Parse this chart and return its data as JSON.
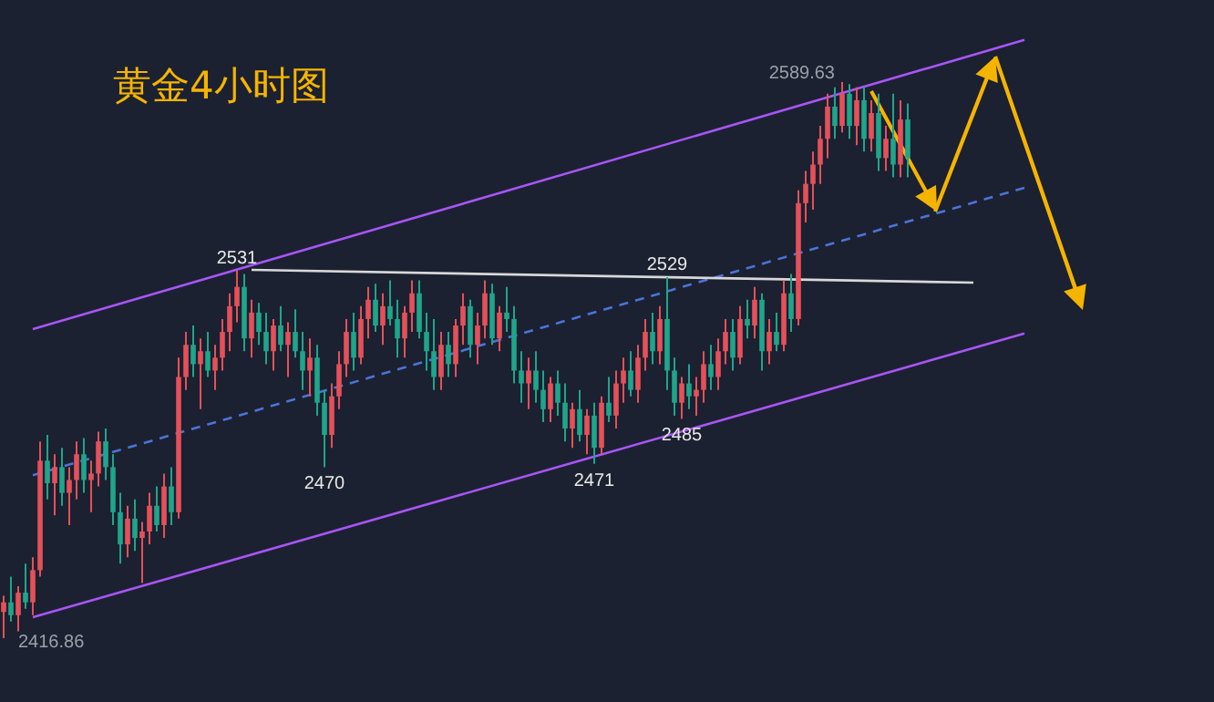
{
  "chart_data": {
    "type": "candlestick",
    "title": "黄金4小时图",
    "categories": [
      null,
      null,
      null,
      null,
      null,
      null,
      null,
      null,
      null,
      null,
      null,
      null,
      null,
      null,
      null,
      null,
      null,
      null,
      null,
      null,
      null,
      null,
      null,
      null,
      null,
      null,
      null,
      null,
      null,
      null,
      null,
      null,
      null,
      null,
      null,
      null,
      null,
      null,
      null,
      null,
      null,
      null,
      null,
      null,
      null,
      null,
      null,
      null,
      null,
      null,
      null,
      null,
      null,
      null,
      null,
      null,
      null,
      null,
      null,
      null,
      null,
      null,
      null,
      null,
      null,
      null,
      null,
      null,
      null,
      null,
      null,
      null,
      null,
      null,
      null,
      null,
      null,
      null,
      null,
      null,
      null,
      null,
      null,
      null,
      null,
      null,
      null,
      null,
      null,
      null,
      null,
      null,
      null,
      null,
      null,
      null,
      null,
      null,
      null,
      null,
      null,
      null,
      null,
      null,
      null,
      null,
      null,
      null,
      null,
      null,
      null,
      null,
      null,
      null,
      null,
      null,
      null,
      null,
      null,
      null,
      null,
      null,
      null,
      null,
      null,
      null,
      null,
      null,
      null,
      null,
      null,
      null,
      null,
      null,
      null,
      null,
      null,
      null,
      null,
      null,
      null
    ],
    "ohlc": [
      [
        2425,
        2430,
        2416.86,
        2428
      ],
      [
        2428,
        2436,
        2422,
        2424
      ],
      [
        2424,
        2433,
        2419,
        2431
      ],
      [
        2431,
        2440,
        2426,
        2428
      ],
      [
        2428,
        2442,
        2424,
        2438
      ],
      [
        2438,
        2478,
        2436,
        2472
      ],
      [
        2472,
        2480,
        2460,
        2465
      ],
      [
        2465,
        2474,
        2455,
        2470
      ],
      [
        2470,
        2476,
        2458,
        2462
      ],
      [
        2462,
        2470,
        2452,
        2466
      ],
      [
        2466,
        2478,
        2460,
        2474
      ],
      [
        2474,
        2479,
        2462,
        2466
      ],
      [
        2466,
        2472,
        2456,
        2468
      ],
      [
        2468,
        2481,
        2464,
        2478
      ],
      [
        2478,
        2482,
        2466,
        2470
      ],
      [
        2470,
        2474,
        2452,
        2456
      ],
      [
        2456,
        2462,
        2440,
        2446
      ],
      [
        2446,
        2458,
        2442,
        2454
      ],
      [
        2454,
        2460,
        2444,
        2448
      ],
      [
        2448,
        2453,
        2434,
        2450
      ],
      [
        2450,
        2462,
        2446,
        2458
      ],
      [
        2458,
        2464,
        2450,
        2452
      ],
      [
        2452,
        2468,
        2448,
        2464
      ],
      [
        2464,
        2470,
        2452,
        2456
      ],
      [
        2456,
        2504,
        2454,
        2498
      ],
      [
        2498,
        2512,
        2494,
        2508
      ],
      [
        2508,
        2514,
        2498,
        2502
      ],
      [
        2502,
        2510,
        2488,
        2506
      ],
      [
        2506,
        2512,
        2498,
        2500
      ],
      [
        2500,
        2508,
        2494,
        2504
      ],
      [
        2504,
        2516,
        2500,
        2512
      ],
      [
        2512,
        2524,
        2506,
        2520
      ],
      [
        2520,
        2531,
        2515,
        2526
      ],
      [
        2526,
        2530,
        2506,
        2510
      ],
      [
        2510,
        2522,
        2504,
        2518
      ],
      [
        2518,
        2521,
        2508,
        2512
      ],
      [
        2512,
        2518,
        2502,
        2506
      ],
      [
        2506,
        2516,
        2500,
        2514
      ],
      [
        2514,
        2520,
        2506,
        2508
      ],
      [
        2508,
        2515,
        2498,
        2512
      ],
      [
        2512,
        2519,
        2504,
        2506
      ],
      [
        2506,
        2512,
        2494,
        2500
      ],
      [
        2500,
        2510,
        2492,
        2504
      ],
      [
        2504,
        2508,
        2486,
        2490
      ],
      [
        2490,
        2494,
        2470,
        2480
      ],
      [
        2480,
        2496,
        2476,
        2492
      ],
      [
        2492,
        2506,
        2488,
        2502
      ],
      [
        2502,
        2516,
        2498,
        2512
      ],
      [
        2512,
        2518,
        2500,
        2504
      ],
      [
        2504,
        2520,
        2502,
        2516
      ],
      [
        2516,
        2526,
        2510,
        2522
      ],
      [
        2522,
        2527,
        2512,
        2514
      ],
      [
        2514,
        2524,
        2508,
        2520
      ],
      [
        2520,
        2528,
        2514,
        2516
      ],
      [
        2516,
        2522,
        2504,
        2510
      ],
      [
        2510,
        2520,
        2504,
        2518
      ],
      [
        2518,
        2528,
        2512,
        2524
      ],
      [
        2524,
        2528,
        2510,
        2512
      ],
      [
        2512,
        2518,
        2500,
        2506
      ],
      [
        2506,
        2516,
        2494,
        2498
      ],
      [
        2498,
        2512,
        2494,
        2508
      ],
      [
        2508,
        2512,
        2498,
        2502
      ],
      [
        2502,
        2516,
        2498,
        2514
      ],
      [
        2514,
        2524,
        2508,
        2520
      ],
      [
        2520,
        2522,
        2504,
        2508
      ],
      [
        2508,
        2518,
        2502,
        2514
      ],
      [
        2514,
        2528,
        2510,
        2524
      ],
      [
        2524,
        2527,
        2508,
        2510
      ],
      [
        2510,
        2520,
        2506,
        2518
      ],
      [
        2518,
        2526,
        2512,
        2516
      ],
      [
        2516,
        2520,
        2496,
        2500
      ],
      [
        2500,
        2506,
        2490,
        2496
      ],
      [
        2496,
        2504,
        2488,
        2500
      ],
      [
        2500,
        2506,
        2490,
        2494
      ],
      [
        2494,
        2500,
        2484,
        2488
      ],
      [
        2488,
        2498,
        2484,
        2496
      ],
      [
        2496,
        2500,
        2486,
        2490
      ],
      [
        2490,
        2496,
        2478,
        2482
      ],
      [
        2482,
        2490,
        2476,
        2488
      ],
      [
        2488,
        2494,
        2478,
        2480
      ],
      [
        2480,
        2488,
        2474,
        2486
      ],
      [
        2486,
        2490,
        2471,
        2476
      ],
      [
        2476,
        2492,
        2474,
        2490
      ],
      [
        2490,
        2498,
        2484,
        2486
      ],
      [
        2486,
        2500,
        2482,
        2496
      ],
      [
        2496,
        2504,
        2490,
        2500
      ],
      [
        2500,
        2506,
        2492,
        2494
      ],
      [
        2494,
        2508,
        2490,
        2504
      ],
      [
        2504,
        2516,
        2500,
        2512
      ],
      [
        2512,
        2518,
        2502,
        2506
      ],
      [
        2506,
        2520,
        2502,
        2516
      ],
      [
        2516,
        2529,
        2494,
        2500
      ],
      [
        2500,
        2504,
        2486,
        2490
      ],
      [
        2490,
        2498,
        2485,
        2496
      ],
      [
        2496,
        2502,
        2488,
        2492
      ],
      [
        2492,
        2498,
        2486,
        2494
      ],
      [
        2494,
        2506,
        2490,
        2502
      ],
      [
        2502,
        2508,
        2494,
        2498
      ],
      [
        2498,
        2510,
        2494,
        2506
      ],
      [
        2506,
        2516,
        2502,
        2512
      ],
      [
        2512,
        2516,
        2500,
        2504
      ],
      [
        2504,
        2520,
        2502,
        2516
      ],
      [
        2516,
        2522,
        2510,
        2514
      ],
      [
        2514,
        2526,
        2510,
        2522
      ],
      [
        2522,
        2524,
        2500,
        2506
      ],
      [
        2506,
        2516,
        2502,
        2512
      ],
      [
        2512,
        2518,
        2506,
        2508
      ],
      [
        2508,
        2528,
        2506,
        2524
      ],
      [
        2524,
        2530,
        2512,
        2516
      ],
      [
        2516,
        2556,
        2514,
        2552
      ],
      [
        2552,
        2562,
        2546,
        2558
      ],
      [
        2558,
        2568,
        2550,
        2564
      ],
      [
        2564,
        2576,
        2558,
        2572
      ],
      [
        2572,
        2586,
        2566,
        2582
      ],
      [
        2582,
        2588,
        2572,
        2576
      ],
      [
        2576,
        2589.63,
        2574,
        2586
      ],
      [
        2586,
        2589,
        2572,
        2576
      ],
      [
        2576,
        2588,
        2570,
        2584
      ],
      [
        2584,
        2588,
        2568,
        2572
      ],
      [
        2572,
        2584,
        2568,
        2580
      ],
      [
        2580,
        2586,
        2562,
        2566
      ],
      [
        2566,
        2576,
        2562,
        2572
      ],
      [
        2572,
        2586,
        2560,
        2564
      ],
      [
        2564,
        2584,
        2560,
        2578
      ],
      [
        2578,
        2583,
        2560,
        2566
      ],
      null,
      null,
      null,
      null,
      null,
      null,
      null,
      null,
      null,
      null,
      null,
      null,
      null,
      null,
      null,
      null
    ],
    "series": [
      {
        "type": "line",
        "color": "#a855f7",
        "line_style": "solid",
        "values": [
          null,
          null,
          null,
          null,
          2512.9,
          null,
          null,
          null,
          null,
          null,
          null,
          null,
          null,
          null,
          null,
          null,
          null,
          null,
          null,
          null,
          null,
          null,
          null,
          null,
          null,
          null,
          null,
          null,
          null,
          null,
          null,
          null,
          null,
          null,
          null,
          null,
          null,
          null,
          null,
          null,
          null,
          null,
          null,
          null,
          null,
          null,
          null,
          null,
          null,
          null,
          null,
          null,
          null,
          null,
          null,
          null,
          null,
          null,
          null,
          null,
          null,
          null,
          null,
          null,
          null,
          null,
          null,
          null,
          null,
          null,
          null,
          null,
          null,
          null,
          null,
          null,
          null,
          null,
          null,
          null,
          null,
          null,
          null,
          null,
          null,
          null,
          null,
          null,
          null,
          null,
          null,
          null,
          null,
          null,
          null,
          null,
          null,
          null,
          null,
          null,
          null,
          null,
          null,
          null,
          null,
          null,
          null,
          null,
          null,
          null,
          null,
          null,
          null,
          null,
          null,
          null,
          null,
          null,
          null,
          null,
          null,
          null,
          null,
          null,
          null,
          null,
          null,
          null,
          null,
          null,
          null,
          null,
          null,
          null,
          null,
          null,
          null,
          null,
          null,
          null,
          2602.7
        ]
      },
      {
        "type": "line",
        "color": "#a855f7",
        "line_style": "solid",
        "values": [
          null,
          null,
          null,
          null,
          2423.4,
          null,
          null,
          null,
          null,
          null,
          null,
          null,
          null,
          null,
          null,
          null,
          null,
          null,
          null,
          null,
          null,
          null,
          null,
          null,
          null,
          null,
          null,
          null,
          null,
          null,
          null,
          null,
          null,
          null,
          null,
          null,
          null,
          null,
          null,
          null,
          null,
          null,
          null,
          null,
          null,
          null,
          null,
          null,
          null,
          null,
          null,
          null,
          null,
          null,
          null,
          null,
          null,
          null,
          null,
          null,
          null,
          null,
          null,
          null,
          null,
          null,
          null,
          null,
          null,
          null,
          null,
          null,
          null,
          null,
          null,
          null,
          null,
          null,
          null,
          null,
          null,
          null,
          null,
          null,
          null,
          null,
          null,
          null,
          null,
          null,
          null,
          null,
          null,
          null,
          null,
          null,
          null,
          null,
          null,
          null,
          null,
          null,
          null,
          null,
          null,
          null,
          null,
          null,
          null,
          null,
          null,
          null,
          null,
          null,
          null,
          null,
          null,
          null,
          null,
          null,
          null,
          null,
          null,
          null,
          null,
          null,
          null,
          null,
          null,
          null,
          null,
          null,
          null,
          null,
          null,
          null,
          null,
          null,
          null,
          null,
          2511.5
        ]
      },
      {
        "type": "line",
        "color": "#4a74d9",
        "line_style": "dashed",
        "values": [
          null,
          null,
          null,
          null,
          2467.5,
          null,
          null,
          null,
          null,
          null,
          null,
          null,
          null,
          null,
          null,
          null,
          null,
          null,
          null,
          null,
          null,
          null,
          null,
          null,
          null,
          null,
          null,
          null,
          null,
          null,
          null,
          null,
          null,
          null,
          null,
          null,
          null,
          null,
          null,
          null,
          null,
          null,
          null,
          null,
          null,
          null,
          null,
          null,
          null,
          null,
          null,
          null,
          null,
          null,
          null,
          null,
          null,
          null,
          null,
          null,
          null,
          null,
          null,
          null,
          null,
          null,
          null,
          null,
          null,
          null,
          null,
          null,
          null,
          null,
          null,
          null,
          null,
          null,
          null,
          null,
          null,
          null,
          null,
          null,
          null,
          null,
          null,
          null,
          null,
          null,
          null,
          null,
          null,
          null,
          null,
          null,
          null,
          null,
          null,
          null,
          null,
          null,
          null,
          null,
          null,
          null,
          null,
          null,
          null,
          null,
          null,
          null,
          null,
          null,
          null,
          null,
          null,
          null,
          null,
          null,
          null,
          null,
          null,
          null,
          null,
          null,
          null,
          null,
          null,
          null,
          null,
          null,
          null,
          null,
          null,
          null,
          null,
          null,
          null,
          null,
          2556.8
        ]
      },
      {
        "type": "line",
        "color": "#d8d8d8",
        "line_style": "solid",
        "values": [
          null,
          null,
          null,
          null,
          null,
          null,
          null,
          null,
          null,
          null,
          null,
          null,
          null,
          null,
          null,
          null,
          null,
          null,
          null,
          null,
          null,
          null,
          null,
          null,
          null,
          null,
          null,
          null,
          null,
          null,
          null,
          null,
          null,
          null,
          2531.3,
          null,
          null,
          null,
          null,
          null,
          null,
          null,
          null,
          null,
          null,
          null,
          null,
          null,
          null,
          null,
          null,
          null,
          null,
          null,
          null,
          null,
          null,
          null,
          null,
          null,
          null,
          null,
          null,
          null,
          null,
          null,
          null,
          null,
          null,
          null,
          null,
          null,
          null,
          null,
          null,
          null,
          null,
          null,
          null,
          null,
          null,
          null,
          null,
          null,
          null,
          null,
          null,
          null,
          null,
          null,
          null,
          null,
          null,
          null,
          null,
          null,
          null,
          null,
          null,
          null,
          null,
          null,
          null,
          null,
          null,
          null,
          null,
          null,
          null,
          null,
          null,
          null,
          null,
          null,
          null,
          null,
          null,
          null,
          null,
          null,
          null,
          null,
          null,
          null,
          null,
          null,
          null,
          null,
          null,
          null,
          null,
          null,
          null,
          2527.3,
          null,
          null,
          null,
          null,
          null,
          null,
          null
        ]
      }
    ],
    "annotations": [
      {
        "text": "2531",
        "y": 2531
      },
      {
        "text": "2529",
        "y": 2529
      },
      {
        "text": "2470",
        "y": 2470
      },
      {
        "text": "2471",
        "y": 2471
      },
      {
        "text": "2485",
        "y": 2485
      },
      "2416.86",
      "2589.63"
    ]
  }
}
